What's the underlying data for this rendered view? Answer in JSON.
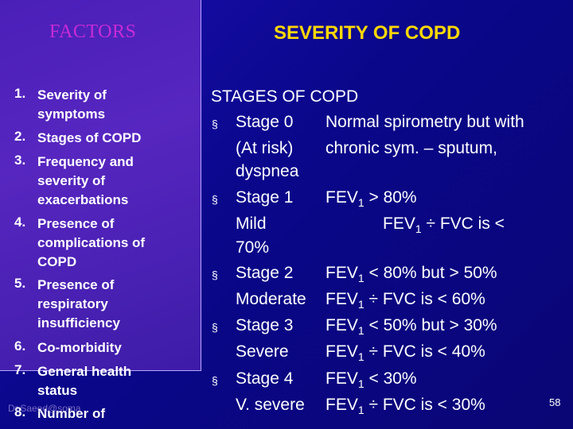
{
  "left_title": "FACTORS",
  "right_title": "SEVERITY OF COPD",
  "factors": [
    {
      "num": "1.",
      "lines": [
        "Severity of",
        "symptoms"
      ]
    },
    {
      "num": "2.",
      "lines": [
        "Stages of COPD"
      ]
    },
    {
      "num": "3.",
      "lines": [
        "Frequency and",
        "severity of",
        "exacerbations"
      ]
    },
    {
      "num": "4.",
      "lines": [
        "Presence of",
        "complications of",
        "COPD"
      ]
    },
    {
      "num": "5.",
      "lines": [
        "Presence of",
        "respiratory",
        "insufficiency"
      ]
    },
    {
      "num": "6.",
      "lines": [
        "Co-morbidity"
      ]
    },
    {
      "num": "7.",
      "lines": [
        "General health",
        "status"
      ]
    },
    {
      "num": "8.",
      "lines": [
        "Number of"
      ]
    }
  ],
  "stages_heading": "STAGES OF COPD",
  "bullet_symbol": "§",
  "stages": {
    "s0_label": "Stage 0",
    "s0_desc1": "Normal spirometry but with",
    "s0_sub": "(At risk)",
    "s0_desc2": "chronic sym. – sputum,",
    "s0_desc3": "dyspnea",
    "s1_label": "Stage 1",
    "s1_fev_pre": "FEV",
    "s1_fev_sub": "1",
    "s1_fev_post": " > 80%",
    "s1_sub": "Mild",
    "s1_ratio_pre": "FEV",
    "s1_ratio_sub": "1",
    "s1_ratio_post": " ÷ FVC is <",
    "s1_ratio_cont": "70%",
    "s2_label": "Stage 2",
    "s2_fev_pre": "FEV",
    "s2_fev_sub": "1",
    "s2_fev_post": " < 80% but > 50%",
    "s2_sub": "Moderate",
    "s2_ratio_pre": "FEV",
    "s2_ratio_sub": "1",
    "s2_ratio_post": " ÷  FVC is < 60%",
    "s3_label": "Stage 3",
    "s3_fev_pre": "FEV",
    "s3_fev_sub": "1",
    "s3_fev_post": " < 50% but > 30%",
    "s3_sub": "Severe",
    "s3_ratio_pre": "FEV",
    "s3_ratio_sub": "1",
    "s3_ratio_post": " ÷ FVC is < 40%",
    "s4_label": "Stage 4",
    "s4_fev_pre": "FEV",
    "s4_fev_sub": "1",
    "s4_fev_post": " < 30%",
    "s4_sub": "V. severe",
    "s4_ratio_pre": "FEV",
    "s4_ratio_sub": "1",
    "s4_ratio_post": " ÷  FVC is < 30%"
  },
  "watermark": "Dr.Saeed@soma",
  "page_number": "58",
  "colors": {
    "background": "#0a078a",
    "left_panel": "#4a1fb8",
    "left_title": "#c82bd6",
    "right_title": "#ffd800",
    "text": "#ffffff"
  }
}
